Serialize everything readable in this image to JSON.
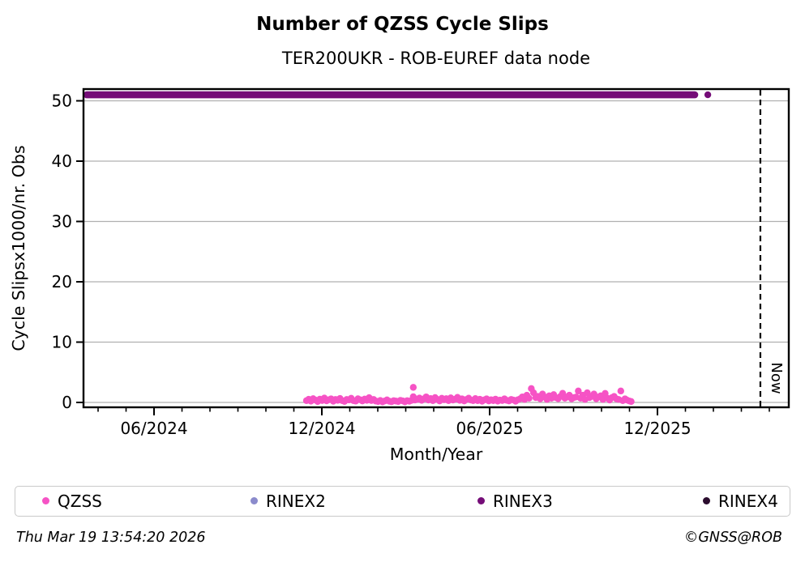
{
  "footer": {
    "timestamp": "Thu Mar 19 13:54:20 2026",
    "credit": "©GNSS@ROB"
  },
  "chart_data": {
    "type": "scatter",
    "title": "Number of QZSS Cycle Slips",
    "subtitle": "TER200UKR - ROB-EUREF data node",
    "xlabel": "Month/Year",
    "ylabel": "Cycle Slipsx1000/nr. Obs",
    "x_unit": "months since 06/2024 tick",
    "xlim": [
      -2.52,
      22.7
    ],
    "ylim": [
      -0.8,
      52.0
    ],
    "yticks": [
      0,
      10,
      20,
      30,
      40,
      50
    ],
    "xticks_major": [
      {
        "m": 0,
        "label": "06/2024"
      },
      {
        "m": 6,
        "label": "12/2024"
      },
      {
        "m": 12,
        "label": "06/2025"
      },
      {
        "m": 18,
        "label": "12/2025"
      }
    ],
    "xticks_minor": {
      "from": -2,
      "to": 22,
      "step": 1
    },
    "grid": true,
    "grid_color": "#b0b0b0",
    "now_line": {
      "m": 21.68,
      "label": "Now"
    },
    "legend_position": "below",
    "series": [
      {
        "name": "QZSS",
        "color": "#f653c5",
        "points": [
          [
            5.45,
            0.3
          ],
          [
            5.53,
            0.52
          ],
          [
            5.61,
            0.21
          ],
          [
            5.69,
            0.62
          ],
          [
            5.77,
            0.4
          ],
          [
            5.85,
            0.15
          ],
          [
            5.93,
            0.55
          ],
          [
            6.01,
            0.31
          ],
          [
            6.09,
            0.72
          ],
          [
            6.17,
            0.26
          ],
          [
            6.25,
            0.45
          ],
          [
            6.33,
            0.6
          ],
          [
            6.41,
            0.2
          ],
          [
            6.49,
            0.5
          ],
          [
            6.57,
            0.35
          ],
          [
            6.65,
            0.66
          ],
          [
            6.73,
            0.3
          ],
          [
            6.81,
            0.16
          ],
          [
            6.89,
            0.5
          ],
          [
            6.97,
            0.41
          ],
          [
            7.05,
            0.7
          ],
          [
            7.13,
            0.3
          ],
          [
            7.21,
            0.22
          ],
          [
            7.29,
            0.61
          ],
          [
            7.37,
            0.45
          ],
          [
            7.45,
            0.25
          ],
          [
            7.53,
            0.56
          ],
          [
            7.61,
            0.35
          ],
          [
            7.69,
            0.8
          ],
          [
            7.77,
            0.31
          ],
          [
            7.85,
            0.5
          ],
          [
            7.93,
            0.22
          ],
          [
            8.01,
            0.15
          ],
          [
            8.09,
            0.32
          ],
          [
            8.17,
            0.1
          ],
          [
            8.25,
            0.25
          ],
          [
            8.33,
            0.42
          ],
          [
            8.41,
            0.2
          ],
          [
            8.49,
            0.12
          ],
          [
            8.57,
            0.3
          ],
          [
            8.65,
            0.22
          ],
          [
            8.73,
            0.15
          ],
          [
            8.81,
            0.35
          ],
          [
            8.89,
            0.26
          ],
          [
            8.97,
            0.1
          ],
          [
            9.05,
            0.3
          ],
          [
            9.13,
            0.2
          ],
          [
            9.21,
            0.35
          ],
          [
            9.27,
            2.5
          ],
          [
            9.27,
            0.95
          ],
          [
            9.33,
            0.4
          ],
          [
            9.41,
            0.5
          ],
          [
            9.49,
            0.72
          ],
          [
            9.57,
            0.35
          ],
          [
            9.65,
            0.6
          ],
          [
            9.73,
            0.92
          ],
          [
            9.81,
            0.4
          ],
          [
            9.89,
            0.65
          ],
          [
            9.97,
            0.3
          ],
          [
            10.05,
            0.81
          ],
          [
            10.13,
            0.5
          ],
          [
            10.21,
            0.25
          ],
          [
            10.29,
            0.7
          ],
          [
            10.37,
            0.45
          ],
          [
            10.45,
            0.62
          ],
          [
            10.53,
            0.3
          ],
          [
            10.61,
            0.76
          ],
          [
            10.69,
            0.4
          ],
          [
            10.77,
            0.55
          ],
          [
            10.85,
            0.85
          ],
          [
            10.93,
            0.35
          ],
          [
            11.01,
            0.6
          ],
          [
            11.09,
            0.25
          ],
          [
            11.17,
            0.5
          ],
          [
            11.25,
            0.71
          ],
          [
            11.33,
            0.4
          ],
          [
            11.41,
            0.3
          ],
          [
            11.49,
            0.65
          ],
          [
            11.57,
            0.3
          ],
          [
            11.65,
            0.52
          ],
          [
            11.73,
            0.2
          ],
          [
            11.81,
            0.42
          ],
          [
            11.89,
            0.6
          ],
          [
            11.97,
            0.25
          ],
          [
            12.05,
            0.45
          ],
          [
            12.13,
            0.3
          ],
          [
            12.21,
            0.55
          ],
          [
            12.29,
            0.21
          ],
          [
            12.37,
            0.4
          ],
          [
            12.45,
            0.31
          ],
          [
            12.53,
            0.6
          ],
          [
            12.61,
            0.35
          ],
          [
            12.69,
            0.25
          ],
          [
            12.77,
            0.5
          ],
          [
            12.85,
            0.4
          ],
          [
            12.93,
            0.2
          ],
          [
            13.01,
            0.45
          ],
          [
            13.09,
            0.6
          ],
          [
            13.17,
            0.92
          ],
          [
            13.25,
            0.5
          ],
          [
            13.33,
            1.2
          ],
          [
            13.41,
            0.7
          ],
          [
            13.49,
            2.3
          ],
          [
            13.57,
            1.6
          ],
          [
            13.65,
            0.8
          ],
          [
            13.73,
            1.0
          ],
          [
            13.81,
            0.6
          ],
          [
            13.89,
            1.4
          ],
          [
            13.97,
            0.9
          ],
          [
            14.05,
            0.5
          ],
          [
            14.13,
            1.1
          ],
          [
            14.21,
            0.7
          ],
          [
            14.29,
            1.3
          ],
          [
            14.37,
            0.8
          ],
          [
            14.45,
            0.62
          ],
          [
            14.53,
            1.0
          ],
          [
            14.61,
            1.52
          ],
          [
            14.69,
            0.7
          ],
          [
            14.77,
            0.9
          ],
          [
            14.85,
            1.2
          ],
          [
            14.93,
            0.6
          ],
          [
            15.01,
            0.8
          ],
          [
            15.09,
            0.9
          ],
          [
            15.17,
            1.9
          ],
          [
            15.25,
            0.7
          ],
          [
            15.33,
            1.2
          ],
          [
            15.41,
            0.5
          ],
          [
            15.49,
            1.6
          ],
          [
            15.57,
            0.8
          ],
          [
            15.65,
            1.0
          ],
          [
            15.73,
            1.4
          ],
          [
            15.81,
            0.6
          ],
          [
            15.89,
            0.9
          ],
          [
            15.97,
            1.1
          ],
          [
            16.05,
            0.5
          ],
          [
            16.13,
            1.5
          ],
          [
            16.21,
            0.7
          ],
          [
            16.29,
            0.4
          ],
          [
            16.37,
            0.8
          ],
          [
            16.45,
            1.0
          ],
          [
            16.53,
            0.6
          ],
          [
            16.61,
            0.5
          ],
          [
            16.69,
            1.9
          ],
          [
            16.76,
            0.3
          ],
          [
            16.84,
            0.6
          ],
          [
            16.91,
            0.4
          ],
          [
            16.99,
            0.25
          ],
          [
            17.06,
            0.15
          ]
        ]
      },
      {
        "name": "RINEX2",
        "color": "#8b8bcc",
        "points": []
      },
      {
        "name": "RINEX3",
        "color": "#750d78",
        "band": {
          "y": 51,
          "m_start": -2.52,
          "m_end": 19.45
        },
        "points": [
          [
            19.8,
            51
          ]
        ]
      },
      {
        "name": "RINEX4",
        "color": "#2b0d2e",
        "points": []
      }
    ]
  }
}
